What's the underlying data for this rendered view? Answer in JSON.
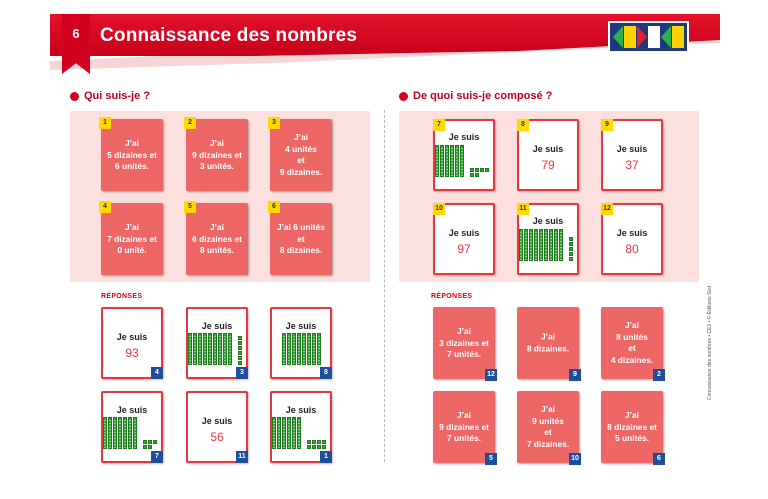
{
  "header": {
    "page_number": "6",
    "title": "Connaissance des nombres"
  },
  "left": {
    "section_title": "Qui suis-je ?",
    "reponses_label": "RÉPONSES",
    "puzzles": [
      {
        "n": "1",
        "lines": [
          "J’ai",
          "5 dizaines et",
          "6 unités."
        ]
      },
      {
        "n": "2",
        "lines": [
          "J’ai",
          "9 dizaines et",
          "3 unités."
        ]
      },
      {
        "n": "3",
        "lines": [
          "J’ai",
          "4 unités",
          "et",
          "9 dizaines."
        ]
      },
      {
        "n": "4",
        "lines": [
          "J’ai",
          "7 dizaines et",
          "0 unité."
        ]
      },
      {
        "n": "5",
        "lines": [
          "J’ai",
          "6 dizaines et",
          "8 unités."
        ]
      },
      {
        "n": "6",
        "lines": [
          "J’ai 6 unités",
          "et",
          "8 dizaines."
        ]
      }
    ],
    "answers": [
      {
        "label": "Je suis",
        "value": "93",
        "corner": "4",
        "tens": 0,
        "units": 0
      },
      {
        "label": "Je suis",
        "value": "",
        "corner": "3",
        "tens": 9,
        "units": 6
      },
      {
        "label": "Je suis",
        "value": "",
        "corner": "8",
        "tens": 8,
        "units": 0
      },
      {
        "label": "Je suis",
        "value": "",
        "corner": "7",
        "tens": 7,
        "units": 5
      },
      {
        "label": "Je suis",
        "value": "56",
        "corner": "11",
        "tens": 0,
        "units": 0
      },
      {
        "label": "Je suis",
        "value": "",
        "corner": "1",
        "tens": 6,
        "units": 8
      }
    ]
  },
  "right": {
    "section_title": "De quoi suis-je composé ?",
    "reponses_label": "RÉPONSES",
    "puzzles": [
      {
        "n": "7",
        "label": "Je suis",
        "value": "",
        "tens": 6,
        "units": 6
      },
      {
        "n": "8",
        "label": "Je suis",
        "value": "79",
        "tens": 0,
        "units": 0
      },
      {
        "n": "9",
        "label": "Je suis",
        "value": "37",
        "tens": 0,
        "units": 0
      },
      {
        "n": "10",
        "label": "Je suis",
        "value": "97",
        "tens": 0,
        "units": 0
      },
      {
        "n": "11",
        "label": "Je suis",
        "value": "",
        "tens": 9,
        "units": 5
      },
      {
        "n": "12",
        "label": "Je suis",
        "value": "80",
        "tens": 0,
        "units": 0
      }
    ],
    "answers": [
      {
        "lines": [
          "J’ai",
          "3 dizaines et",
          "7 unités."
        ],
        "corner": "12"
      },
      {
        "lines": [
          "J’ai",
          "8 dizaines."
        ],
        "corner": "9"
      },
      {
        "lines": [
          "J’ai",
          "8 unités",
          "et",
          "4 dizaines."
        ],
        "corner": "2"
      },
      {
        "lines": [
          "J’ai",
          "9 dizaines et",
          "7 unités."
        ],
        "corner": "5"
      },
      {
        "lines": [
          "J’ai",
          "9 unités",
          "et",
          "7 dizaines."
        ],
        "corner": "10"
      },
      {
        "lines": [
          "J’ai",
          "8 dizaines et",
          "5 unités."
        ],
        "corner": "6"
      }
    ]
  },
  "footer": "Connaissance des nombres • CE1 • © Éditions Sed",
  "colors": {
    "red": "#e2122a",
    "card_red": "#ec6766",
    "zone": "#fbe0de",
    "badge_yellow": "#ffd800",
    "badge_blue": "#1f4e9b",
    "block_green": "#3ca63c"
  }
}
